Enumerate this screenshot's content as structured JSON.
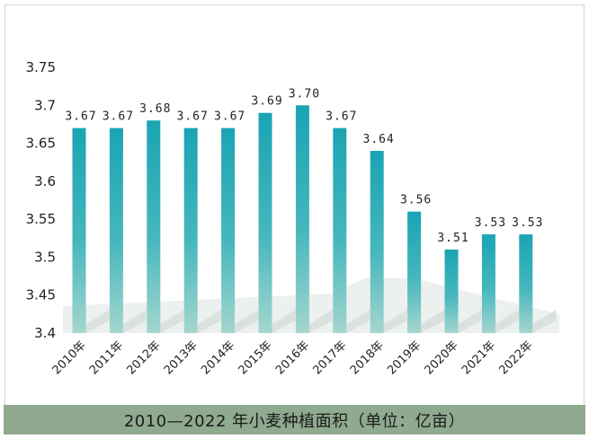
{
  "chart_data": {
    "type": "bar",
    "title": "2010—2022 年小麦种植面积（单位：亿亩）",
    "categories": [
      "2010年",
      "2011年",
      "2012年",
      "2013年",
      "2014年",
      "2015年",
      "2016年",
      "2017年",
      "2018年",
      "2019年",
      "2020年",
      "2021年",
      "2022年"
    ],
    "values": [
      3.67,
      3.67,
      3.68,
      3.67,
      3.67,
      3.69,
      3.7,
      3.67,
      3.64,
      3.56,
      3.51,
      3.53,
      3.53
    ],
    "value_labels": [
      "3.67",
      "3.67",
      "3.68",
      "3.67",
      "3.67",
      "3.69",
      "3.70",
      "3.67",
      "3.64",
      "3.56",
      "3.51",
      "3.53",
      "3.53"
    ],
    "ylim": [
      3.4,
      3.75
    ],
    "yticks": [
      3.4,
      3.45,
      3.5,
      3.55,
      3.6,
      3.65,
      3.7,
      3.75
    ],
    "ytick_labels": [
      "3.4",
      "3.45",
      "3.5",
      "3.55",
      "3.6",
      "3.65",
      "3.7",
      "3.75"
    ],
    "xlabel": "",
    "ylabel": "",
    "grid": false,
    "legend": "none"
  },
  "colors": {
    "bar_top": "#1aa4b4",
    "bar_bottom": "#a4d6ce",
    "floor": "#e6ebe8",
    "caption_bg": "#8faa8f"
  }
}
